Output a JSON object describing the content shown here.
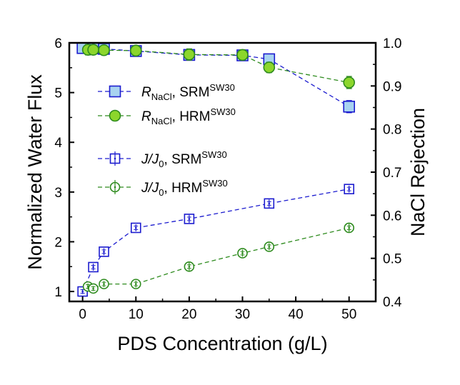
{
  "chart_data": {
    "type": "scatter",
    "x_axis": {
      "label": "PDS Concentration (g/L)",
      "range": [
        -2.5,
        55
      ],
      "ticks": [
        0,
        10,
        20,
        30,
        40,
        50
      ],
      "tick_labels": [
        "0",
        "10",
        "20",
        "30",
        "40",
        "50"
      ]
    },
    "y_axis_left": {
      "label": "Normalized Water Flux",
      "range": [
        0.8,
        6
      ],
      "ticks": [
        1,
        2,
        3,
        4,
        5,
        6
      ],
      "tick_labels": [
        "1",
        "2",
        "3",
        "4",
        "5",
        "6"
      ]
    },
    "y_axis_right": {
      "label": "NaCl Rejection",
      "range": [
        0.4,
        1.0
      ],
      "ticks": [
        0.4,
        0.5,
        0.6,
        0.7,
        0.8,
        0.9,
        1.0
      ],
      "tick_labels": [
        "0.4",
        "0.5",
        "0.6",
        "0.7",
        "0.8",
        "0.9",
        "1.0"
      ]
    },
    "legend": {
      "placement": "center-left"
    },
    "series": [
      {
        "id": "r_srm",
        "legend_base": "R",
        "legend_sub": "NaCl",
        "legend_mid": ", SRM",
        "legend_sup": "SW30",
        "axis": "right",
        "marker": "square",
        "filled": true,
        "color": "#1c1ccf",
        "fill": "#a8d3f0",
        "x": [
          0,
          2,
          4,
          10,
          20,
          30,
          35,
          50
        ],
        "y": [
          0.988,
          0.987,
          0.986,
          0.981,
          0.972,
          0.971,
          0.962,
          0.852
        ],
        "err": [
          0.005,
          0.005,
          0.005,
          0.005,
          0.006,
          0.005,
          0.006,
          0.014
        ]
      },
      {
        "id": "r_hrm",
        "legend_base": "R",
        "legend_sub": "NaCl",
        "legend_mid": ", HRM",
        "legend_sup": "SW30",
        "axis": "right",
        "marker": "circle",
        "filled": true,
        "color": "#2e8b1e",
        "fill": "#8cd62c",
        "x": [
          1,
          2,
          4,
          10,
          20,
          30,
          35,
          50
        ],
        "y": [
          0.984,
          0.984,
          0.983,
          0.982,
          0.973,
          0.972,
          0.943,
          0.908
        ],
        "err": [
          0.012,
          0.007,
          0.005,
          0.009,
          0.013,
          0.012,
          0.012,
          0.014
        ]
      },
      {
        "id": "j_srm",
        "legend_base": "J",
        "legend_slash": "/",
        "legend_base2": "J",
        "legend_sub": "0",
        "legend_mid": ", SRM",
        "legend_sup": "SW30",
        "axis": "left",
        "marker": "square",
        "filled": false,
        "color": "#1c1ccf",
        "fill": "none",
        "x": [
          0,
          2,
          4,
          10,
          20,
          35,
          50
        ],
        "y": [
          1.0,
          1.49,
          1.8,
          2.28,
          2.46,
          2.77,
          3.06
        ],
        "err": [
          0.05,
          0.07,
          0.07,
          0.07,
          0.08,
          0.08,
          0.07
        ]
      },
      {
        "id": "j_hrm",
        "legend_base": "J",
        "legend_slash": "/",
        "legend_base2": "J",
        "legend_sub": "0",
        "legend_mid": ", HRM",
        "legend_sup": "SW30",
        "axis": "left",
        "marker": "circle",
        "filled": false,
        "color": "#2e8b1e",
        "fill": "none",
        "x": [
          1,
          2,
          4,
          10,
          20,
          30,
          35,
          50
        ],
        "y": [
          1.1,
          1.06,
          1.15,
          1.15,
          1.5,
          1.77,
          1.9,
          2.28
        ],
        "err": [
          0.06,
          0.05,
          0.06,
          0.07,
          0.08,
          0.07,
          0.07,
          0.08
        ]
      }
    ]
  }
}
